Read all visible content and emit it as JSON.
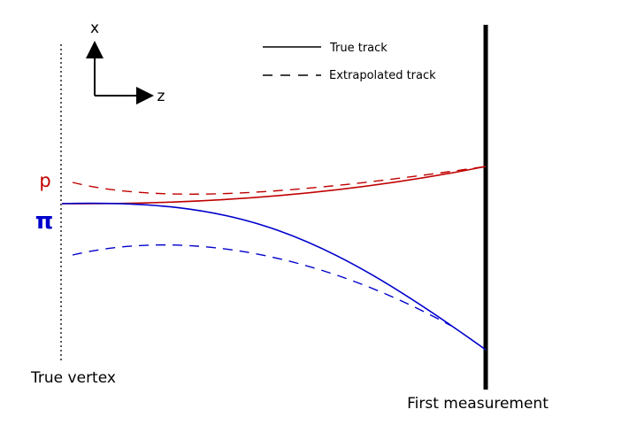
{
  "axes": {
    "x_label": "x",
    "z_label": "z"
  },
  "legend": {
    "true_track": "True track",
    "extrapolated_track": "Extrapolated track"
  },
  "particles": {
    "proton": {
      "label": "p",
      "color": "#c00000"
    },
    "pion": {
      "label": "π",
      "color": "#0000cc"
    }
  },
  "labels": {
    "true_vertex": "True vertex",
    "first_measurement": "First measurement"
  }
}
